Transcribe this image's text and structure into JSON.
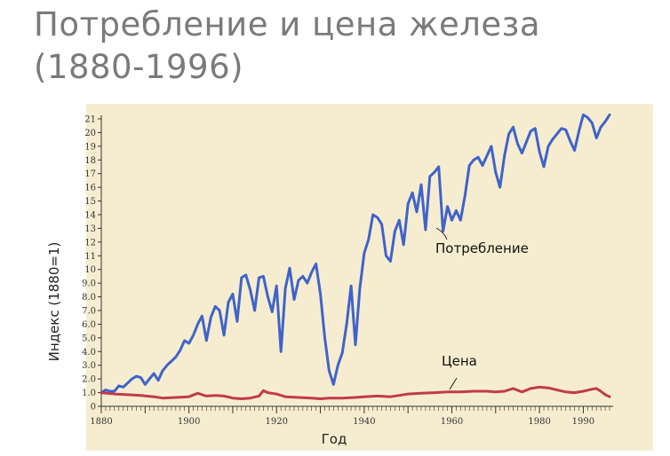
{
  "title": {
    "line1": "Потребление и цена железа",
    "line2": "(1880-1996)"
  },
  "colors": {
    "consumption": "#3f63c9",
    "price": "#c23a4a",
    "panel": "#f6edd0",
    "title": "#7a7a7a"
  },
  "chart_data": {
    "type": "line",
    "xlabel": "Год",
    "ylabel": "Индекс (1880=1)",
    "xlim": [
      1880,
      1996
    ],
    "ylim": [
      0,
      21
    ],
    "x_ticks": [
      1880,
      1900,
      1920,
      1940,
      1960,
      1980,
      1990
    ],
    "y_ticks": [
      "0",
      "1.0",
      "2.0",
      "3.0",
      "4.0",
      "5.0",
      "6.0",
      "7.0",
      "8.0",
      "9.0",
      "10",
      "11",
      "12",
      "13",
      "14",
      "15",
      "16",
      "17",
      "18",
      "19",
      "20",
      "21"
    ],
    "grid": false,
    "annotations": [
      {
        "text": "Потребление",
        "series": "Потребление"
      },
      {
        "text": "Цена",
        "series": "Цена"
      }
    ],
    "series": [
      {
        "name": "Потребление",
        "color": "#3f63c9",
        "points": [
          [
            1880,
            1.0
          ],
          [
            1881,
            1.2
          ],
          [
            1882,
            1.1
          ],
          [
            1883,
            1.1
          ],
          [
            1884,
            1.5
          ],
          [
            1885,
            1.4
          ],
          [
            1886,
            1.7
          ],
          [
            1887,
            2.0
          ],
          [
            1888,
            2.2
          ],
          [
            1889,
            2.1
          ],
          [
            1890,
            1.6
          ],
          [
            1891,
            2.0
          ],
          [
            1892,
            2.4
          ],
          [
            1893,
            1.9
          ],
          [
            1894,
            2.6
          ],
          [
            1895,
            3.0
          ],
          [
            1896,
            3.3
          ],
          [
            1897,
            3.6
          ],
          [
            1898,
            4.1
          ],
          [
            1899,
            4.8
          ],
          [
            1900,
            4.6
          ],
          [
            1901,
            5.2
          ],
          [
            1902,
            6.0
          ],
          [
            1903,
            6.6
          ],
          [
            1904,
            4.8
          ],
          [
            1905,
            6.5
          ],
          [
            1906,
            7.3
          ],
          [
            1907,
            7.0
          ],
          [
            1908,
            5.2
          ],
          [
            1909,
            7.6
          ],
          [
            1910,
            8.2
          ],
          [
            1911,
            6.2
          ],
          [
            1912,
            9.4
          ],
          [
            1913,
            9.6
          ],
          [
            1914,
            8.5
          ],
          [
            1915,
            7.0
          ],
          [
            1916,
            9.4
          ],
          [
            1917,
            9.5
          ],
          [
            1918,
            8.0
          ],
          [
            1919,
            6.9
          ],
          [
            1920,
            8.8
          ],
          [
            1921,
            4.0
          ],
          [
            1922,
            8.6
          ],
          [
            1923,
            10.1
          ],
          [
            1924,
            7.8
          ],
          [
            1925,
            9.2
          ],
          [
            1926,
            9.5
          ],
          [
            1927,
            9.0
          ],
          [
            1928,
            9.8
          ],
          [
            1929,
            10.4
          ],
          [
            1930,
            8.2
          ],
          [
            1931,
            5.0
          ],
          [
            1932,
            2.6
          ],
          [
            1933,
            1.6
          ],
          [
            1934,
            3.0
          ],
          [
            1935,
            3.9
          ],
          [
            1936,
            6.0
          ],
          [
            1937,
            8.8
          ],
          [
            1938,
            4.5
          ],
          [
            1939,
            8.6
          ],
          [
            1940,
            11.2
          ],
          [
            1941,
            12.2
          ],
          [
            1942,
            14.0
          ],
          [
            1943,
            13.8
          ],
          [
            1944,
            13.3
          ],
          [
            1945,
            11.0
          ],
          [
            1946,
            10.6
          ],
          [
            1947,
            12.8
          ],
          [
            1948,
            13.6
          ],
          [
            1949,
            11.8
          ],
          [
            1950,
            14.8
          ],
          [
            1951,
            15.6
          ],
          [
            1952,
            14.2
          ],
          [
            1953,
            16.2
          ],
          [
            1954,
            12.9
          ],
          [
            1955,
            16.8
          ],
          [
            1956,
            17.1
          ],
          [
            1957,
            17.5
          ],
          [
            1958,
            12.8
          ],
          [
            1959,
            14.6
          ],
          [
            1960,
            13.6
          ],
          [
            1961,
            14.3
          ],
          [
            1962,
            13.6
          ],
          [
            1963,
            15.4
          ],
          [
            1964,
            17.6
          ],
          [
            1965,
            18.0
          ],
          [
            1966,
            18.2
          ],
          [
            1967,
            17.6
          ],
          [
            1968,
            18.3
          ],
          [
            1969,
            19.0
          ],
          [
            1970,
            17.1
          ],
          [
            1971,
            16.0
          ],
          [
            1972,
            18.3
          ],
          [
            1973,
            19.9
          ],
          [
            1974,
            20.4
          ],
          [
            1975,
            19.2
          ],
          [
            1976,
            18.5
          ],
          [
            1977,
            19.3
          ],
          [
            1978,
            20.1
          ],
          [
            1979,
            20.3
          ],
          [
            1980,
            18.6
          ],
          [
            1981,
            17.5
          ],
          [
            1982,
            19.0
          ],
          [
            1983,
            19.5
          ],
          [
            1984,
            19.9
          ],
          [
            1985,
            20.3
          ],
          [
            1986,
            20.2
          ],
          [
            1987,
            19.4
          ],
          [
            1988,
            18.7
          ],
          [
            1989,
            20.1
          ],
          [
            1990,
            21.3
          ],
          [
            1991,
            21.1
          ],
          [
            1992,
            20.7
          ],
          [
            1993,
            19.6
          ],
          [
            1994,
            20.4
          ],
          [
            1995,
            20.8
          ],
          [
            1996,
            21.3
          ]
        ]
      },
      {
        "name": "Цена",
        "color": "#c23a4a",
        "points": [
          [
            1880,
            1.0
          ],
          [
            1883,
            0.9
          ],
          [
            1886,
            0.85
          ],
          [
            1889,
            0.8
          ],
          [
            1892,
            0.7
          ],
          [
            1894,
            0.6
          ],
          [
            1897,
            0.65
          ],
          [
            1900,
            0.7
          ],
          [
            1902,
            0.95
          ],
          [
            1904,
            0.75
          ],
          [
            1906,
            0.8
          ],
          [
            1908,
            0.75
          ],
          [
            1910,
            0.6
          ],
          [
            1912,
            0.55
          ],
          [
            1914,
            0.6
          ],
          [
            1916,
            0.75
          ],
          [
            1917,
            1.15
          ],
          [
            1918,
            1.0
          ],
          [
            1920,
            0.9
          ],
          [
            1922,
            0.7
          ],
          [
            1925,
            0.65
          ],
          [
            1928,
            0.6
          ],
          [
            1930,
            0.55
          ],
          [
            1932,
            0.6
          ],
          [
            1935,
            0.6
          ],
          [
            1938,
            0.65
          ],
          [
            1940,
            0.7
          ],
          [
            1943,
            0.75
          ],
          [
            1946,
            0.7
          ],
          [
            1948,
            0.8
          ],
          [
            1950,
            0.9
          ],
          [
            1953,
            0.95
          ],
          [
            1956,
            1.0
          ],
          [
            1959,
            1.05
          ],
          [
            1962,
            1.05
          ],
          [
            1965,
            1.1
          ],
          [
            1968,
            1.1
          ],
          [
            1970,
            1.05
          ],
          [
            1972,
            1.1
          ],
          [
            1974,
            1.3
          ],
          [
            1976,
            1.05
          ],
          [
            1978,
            1.3
          ],
          [
            1980,
            1.4
          ],
          [
            1982,
            1.35
          ],
          [
            1984,
            1.2
          ],
          [
            1986,
            1.05
          ],
          [
            1988,
            1.0
          ],
          [
            1990,
            1.1
          ],
          [
            1992,
            1.25
          ],
          [
            1993,
            1.3
          ],
          [
            1994,
            1.1
          ],
          [
            1995,
            0.85
          ],
          [
            1996,
            0.7
          ]
        ]
      }
    ]
  }
}
